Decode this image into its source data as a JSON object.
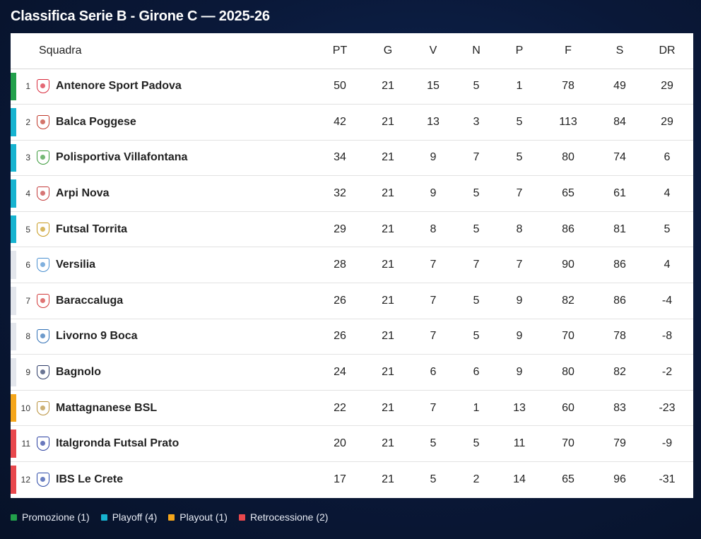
{
  "title": "Classifica Serie B - Girone C — 2025-26",
  "columns": {
    "team": "Squadra",
    "pt": "PT",
    "g": "G",
    "v": "V",
    "n": "N",
    "p": "P",
    "f": "F",
    "s": "S",
    "dr": "DR"
  },
  "zone_colors": {
    "promozione": "#22a04b",
    "playoff": "#17b3d0",
    "playout": "#f5a61b",
    "retrocessione": "#e8484d",
    "none": "#e3e6ec"
  },
  "rows": [
    {
      "pos": "1",
      "team": "Antenore Sport Padova",
      "pt": "50",
      "g": "21",
      "v": "15",
      "n": "5",
      "p": "1",
      "f": "78",
      "s": "49",
      "dr": "29",
      "zone": "promozione",
      "crest_color": "#d8283a",
      "crest_icon": "antenore-crest-icon"
    },
    {
      "pos": "2",
      "team": "Balca Poggese",
      "pt": "42",
      "g": "21",
      "v": "13",
      "n": "3",
      "p": "5",
      "f": "113",
      "s": "84",
      "dr": "29",
      "zone": "playoff",
      "crest_color": "#c0392b",
      "crest_icon": "balca-crest-icon"
    },
    {
      "pos": "3",
      "team": "Polisportiva Villafontana",
      "pt": "34",
      "g": "21",
      "v": "9",
      "n": "7",
      "p": "5",
      "f": "80",
      "s": "74",
      "dr": "6",
      "zone": "playoff",
      "crest_color": "#3a9a3a",
      "crest_icon": "villafontana-crest-icon"
    },
    {
      "pos": "4",
      "team": "Arpi Nova",
      "pt": "32",
      "g": "21",
      "v": "9",
      "n": "5",
      "p": "7",
      "f": "65",
      "s": "61",
      "dr": "4",
      "zone": "playoff",
      "crest_color": "#c43b3b",
      "crest_icon": "arpi-nova-crest-icon"
    },
    {
      "pos": "5",
      "team": "Futsal Torrita",
      "pt": "29",
      "g": "21",
      "v": "8",
      "n": "5",
      "p": "8",
      "f": "86",
      "s": "81",
      "dr": "5",
      "zone": "playoff",
      "crest_color": "#c89a1e",
      "crest_icon": "torrita-crest-icon"
    },
    {
      "pos": "6",
      "team": "Versilia",
      "pt": "28",
      "g": "21",
      "v": "7",
      "n": "7",
      "p": "7",
      "f": "90",
      "s": "86",
      "dr": "4",
      "zone": "none",
      "crest_color": "#4a8fd0",
      "crest_icon": "versilia-crest-icon"
    },
    {
      "pos": "7",
      "team": "Baraccaluga",
      "pt": "26",
      "g": "21",
      "v": "7",
      "n": "5",
      "p": "9",
      "f": "82",
      "s": "86",
      "dr": "-4",
      "zone": "none",
      "crest_color": "#d23a3a",
      "crest_icon": "baraccaluga-crest-icon"
    },
    {
      "pos": "8",
      "team": "Livorno 9 Boca",
      "pt": "26",
      "g": "21",
      "v": "7",
      "n": "5",
      "p": "9",
      "f": "70",
      "s": "78",
      "dr": "-8",
      "zone": "none",
      "crest_color": "#2f6fb5",
      "crest_icon": "livorno-crest-icon"
    },
    {
      "pos": "9",
      "team": "Bagnolo",
      "pt": "24",
      "g": "21",
      "v": "6",
      "n": "6",
      "p": "9",
      "f": "80",
      "s": "82",
      "dr": "-2",
      "zone": "none",
      "crest_color": "#2b3a66",
      "crest_icon": "bagnolo-crest-icon"
    },
    {
      "pos": "10",
      "team": "Mattagnanese BSL",
      "pt": "22",
      "g": "21",
      "v": "7",
      "n": "1",
      "p": "13",
      "f": "60",
      "s": "83",
      "dr": "-23",
      "zone": "playout",
      "crest_color": "#b8903a",
      "crest_icon": "mattagnanese-crest-icon"
    },
    {
      "pos": "11",
      "team": "Italgronda Futsal Prato",
      "pt": "20",
      "g": "21",
      "v": "5",
      "n": "5",
      "p": "11",
      "f": "70",
      "s": "79",
      "dr": "-9",
      "zone": "retrocessione",
      "crest_color": "#2a3fa0",
      "crest_icon": "italgronda-crest-icon"
    },
    {
      "pos": "12",
      "team": "IBS Le Crete",
      "pt": "17",
      "g": "21",
      "v": "5",
      "n": "2",
      "p": "14",
      "f": "65",
      "s": "96",
      "dr": "-31",
      "zone": "retrocessione",
      "crest_color": "#2c4aa8",
      "crest_icon": "ibs-crest-icon"
    }
  ],
  "legend": [
    {
      "key": "promozione",
      "label": "Promozione (1)"
    },
    {
      "key": "playoff",
      "label": "Playoff (4)"
    },
    {
      "key": "playout",
      "label": "Playout (1)"
    },
    {
      "key": "retrocessione",
      "label": "Retrocessione (2)"
    }
  ]
}
